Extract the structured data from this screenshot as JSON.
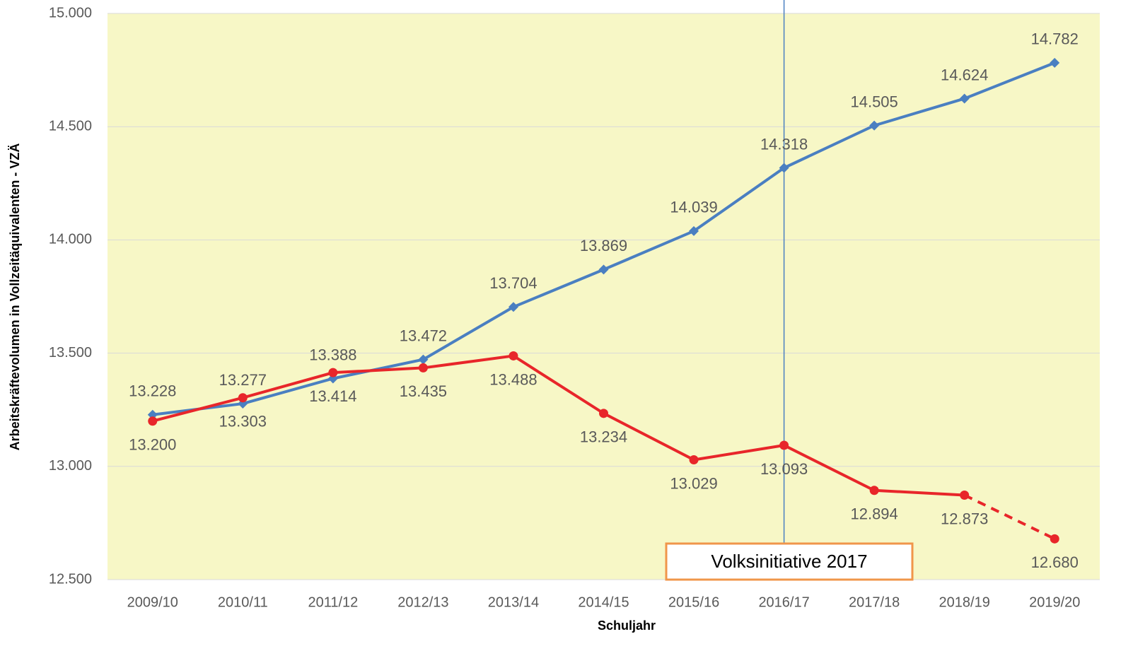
{
  "chart_data": {
    "type": "line",
    "x_label": "Schuljahr",
    "y_label": "Arbeitskräftevolumen in Vollzeitäquivalenten - VZÄ",
    "categories": [
      "2009/10",
      "2010/11",
      "2011/12",
      "2012/13",
      "2013/14",
      "2014/15",
      "2015/16",
      "2016/17",
      "2017/18",
      "2018/19",
      "2019/20"
    ],
    "series": [
      {
        "color": "#4a7fc1",
        "marker": "diamond",
        "label_position": "above",
        "values": [
          13228,
          13277,
          13388,
          13472,
          13704,
          13869,
          14039,
          14318,
          14505,
          14624,
          14782
        ],
        "value_labels": [
          "13.228",
          "13.277",
          "13.388",
          "13.472",
          "13.704",
          "13.869",
          "14.039",
          "14.318",
          "14.505",
          "14.624",
          "14.782"
        ]
      },
      {
        "color": "#e8262a",
        "marker": "circle",
        "label_position": "below",
        "dashed_last_segment": true,
        "values": [
          13200,
          13303,
          13414,
          13435,
          13488,
          13234,
          13029,
          13093,
          12894,
          12873,
          12680
        ],
        "value_labels": [
          "13.200",
          "13.303",
          "13.414",
          "13.435",
          "13.488",
          "13.234",
          "13.029",
          "13.093",
          "12.894",
          "12.873",
          "12.680"
        ]
      }
    ],
    "ylim": [
      12500,
      15000
    ],
    "yticks": [
      {
        "value": 12500,
        "label": "12.500"
      },
      {
        "value": 13000,
        "label": "13.000"
      },
      {
        "value": 13500,
        "label": "13.500"
      },
      {
        "value": 14000,
        "label": "14.000"
      },
      {
        "value": 14500,
        "label": "14.500"
      },
      {
        "value": 15000,
        "label": "15.000"
      }
    ],
    "grid": true,
    "background": "#f7f7c6",
    "annotation": {
      "text": "Volksinitiative 2017",
      "x": "2016/17"
    }
  }
}
